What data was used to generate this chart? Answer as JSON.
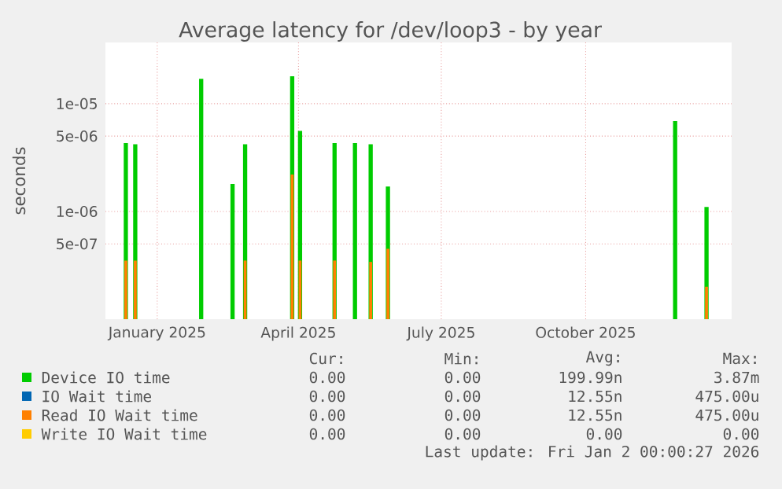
{
  "chart_data": {
    "type": "bar",
    "title": "Average latency for /dev/loop3 - by year",
    "ylabel": "seconds",
    "x": [
      "2024-12-12",
      "2024-12-18",
      "2025-01-29",
      "2025-02-18",
      "2025-02-26",
      "2025-03-28",
      "2025-04-02",
      "2025-04-24",
      "2025-05-07",
      "2025-05-17",
      "2025-05-28",
      "2025-11-27",
      "2025-12-17"
    ],
    "series": [
      {
        "name": "Device IO time",
        "color": "#00cc00",
        "values": [
          4.3e-06,
          4.2e-06,
          1.7e-05,
          1.8e-06,
          4.2e-06,
          1.8e-05,
          5.6e-06,
          4.3e-06,
          4.3e-06,
          4.2e-06,
          1.7e-06,
          6.9e-06,
          1.1e-06
        ]
      },
      {
        "name": "IO Wait time",
        "color": "#0066b3",
        "values": [
          null,
          null,
          null,
          null,
          null,
          null,
          null,
          null,
          null,
          null,
          null,
          null,
          null
        ]
      },
      {
        "name": "Read IO Wait time",
        "color": "#ff8000",
        "values": [
          3.5e-07,
          3.5e-07,
          null,
          null,
          3.5e-07,
          2.2e-06,
          3.5e-07,
          3.5e-07,
          null,
          3.4e-07,
          4.5e-07,
          null,
          2e-07
        ]
      },
      {
        "name": "Write IO Wait time",
        "color": "#ffcc00",
        "values": [
          null,
          null,
          null,
          null,
          null,
          null,
          null,
          null,
          null,
          null,
          null,
          null,
          null
        ]
      }
    ],
    "log": "y",
    "grid": true,
    "legend": "bottom",
    "xlim": [
      "2024-11-29",
      "2026-01-02"
    ],
    "xticks": [
      {
        "value": "2025-01-01",
        "label": "January 2025"
      },
      {
        "value": "2025-04-01",
        "label": "April 2025"
      },
      {
        "value": "2025-07-01",
        "label": "July 2025"
      },
      {
        "value": "2025-10-01",
        "label": "October 2025"
      }
    ],
    "ylim": [
      1e-07,
      3.7e-05
    ],
    "yticks": [
      {
        "value": 5e-07,
        "label": "5e-07"
      },
      {
        "value": 1e-06,
        "label": "1e-06"
      },
      {
        "value": 5e-06,
        "label": "5e-06"
      },
      {
        "value": 1e-05,
        "label": "1e-05"
      }
    ],
    "annotations": [
      "Cur:",
      "Min:",
      "Avg:",
      "Max:",
      "0.00",
      "0.00",
      "199.99n",
      "3.87m",
      "0.00",
      "0.00",
      "12.55n",
      "475.00u",
      "0.00",
      "0.00",
      "12.55n",
      "475.00u",
      "0.00",
      "0.00",
      "0.00",
      "0.00",
      "Last update: Fri Jan  2 00:00:27 2026"
    ]
  }
}
